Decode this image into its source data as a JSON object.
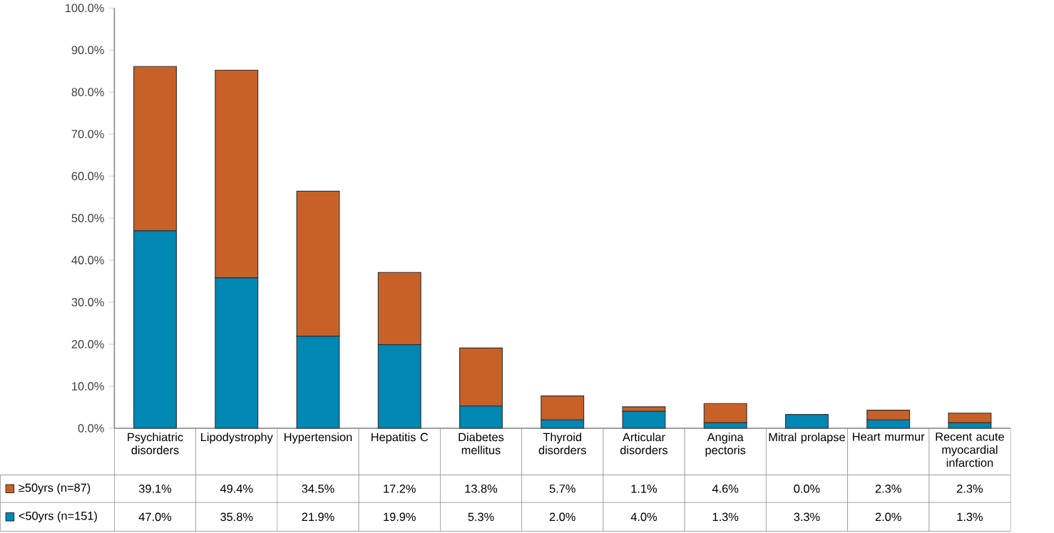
{
  "chart_data": {
    "type": "bar",
    "stacked": true,
    "legend": "bottom",
    "categories": [
      "Psychiatric disorders",
      "Lipodystrophy",
      "Hypertension",
      "Hepatitis C",
      "Diabetes mellitus",
      "Thyroid disorders",
      "Articular disorders",
      "Angina pectoris",
      "Mitral prolapse",
      "Heart murmur",
      "Recent acute myocardial infarction"
    ],
    "series": [
      {
        "name": "<50yrs (n=151)",
        "color": "#0087b4",
        "values": [
          47.0,
          35.8,
          21.9,
          19.9,
          5.3,
          2.0,
          4.0,
          1.3,
          3.3,
          2.0,
          1.3
        ],
        "value_labels": [
          "47.0%",
          "35.8%",
          "21.9%",
          "19.9%",
          "5.3%",
          "2.0%",
          "4.0%",
          "1.3%",
          "3.3%",
          "2.0%",
          "1.3%"
        ]
      },
      {
        "name": "≥50yrs (n=87)",
        "color": "#c86128",
        "values": [
          39.1,
          49.4,
          34.5,
          17.2,
          13.8,
          5.7,
          1.1,
          4.6,
          0.0,
          2.3,
          2.3
        ],
        "value_labels": [
          "39.1%",
          "49.4%",
          "34.5%",
          "17.2%",
          "13.8%",
          "5.7%",
          "1.1%",
          "4.6%",
          "0.0%",
          "2.3%",
          "2.3%"
        ]
      }
    ],
    "ylim": [
      0,
      100
    ],
    "yticks": [
      {
        "value": 0,
        "label": "0.0%"
      },
      {
        "value": 10,
        "label": "10.0%"
      },
      {
        "value": 20,
        "label": "20.0%"
      },
      {
        "value": 30,
        "label": "30.0%"
      },
      {
        "value": 40,
        "label": "40.0%"
      },
      {
        "value": 50,
        "label": "50.0%"
      },
      {
        "value": 60,
        "label": "60.0%"
      },
      {
        "value": 70,
        "label": "70.0%"
      },
      {
        "value": 80,
        "label": "80.0%"
      },
      {
        "value": 90,
        "label": "90.0%"
      },
      {
        "value": 100,
        "label": "100.0%"
      }
    ]
  }
}
